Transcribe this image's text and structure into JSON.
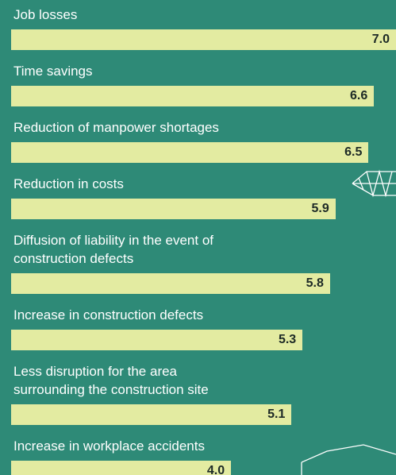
{
  "chart_data": {
    "type": "bar",
    "categories": [
      "Job losses",
      "Time savings",
      "Reduction of manpower shortages",
      "Reduction in costs",
      "Diffusion of liability in the event of\nconstruction defects",
      "Increase in construction defects",
      "Less disruption for the area\nsurrounding the construction site",
      "Increase in workplace accidents"
    ],
    "values": [
      7.0,
      6.6,
      6.5,
      5.9,
      5.8,
      5.3,
      5.1,
      4.0
    ],
    "value_labels": [
      "7.0",
      "6.6",
      "6.5",
      "5.9",
      "5.8",
      "5.3",
      "5.1",
      "4.0"
    ],
    "color": "#e3eba1",
    "xlim": [
      0,
      7
    ]
  }
}
